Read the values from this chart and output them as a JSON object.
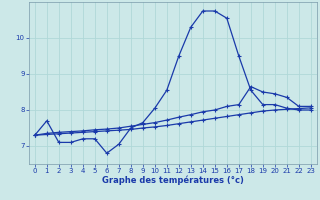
{
  "title": "",
  "xlabel": "Graphe des températures (°c)",
  "ylabel": "",
  "background_color": "#cce8e8",
  "grid_color": "#b0d8d8",
  "line_color": "#1a3aaa",
  "xlim": [
    -0.5,
    23.5
  ],
  "ylim": [
    6.5,
    11.0
  ],
  "yticks": [
    7,
    8,
    9,
    10
  ],
  "xticks": [
    0,
    1,
    2,
    3,
    4,
    5,
    6,
    7,
    8,
    9,
    10,
    11,
    12,
    13,
    14,
    15,
    16,
    17,
    18,
    19,
    20,
    21,
    22,
    23
  ],
  "series": [
    {
      "x": [
        0,
        1,
        2,
        3,
        4,
        5,
        6,
        7,
        8,
        9,
        10,
        11,
        12,
        13,
        14,
        15,
        16,
        17,
        18,
        19,
        20,
        21,
        22,
        23
      ],
      "y": [
        7.3,
        7.7,
        7.1,
        7.1,
        7.2,
        7.2,
        6.8,
        7.05,
        7.5,
        7.65,
        8.05,
        8.55,
        9.5,
        10.3,
        10.75,
        10.75,
        10.55,
        9.5,
        8.55,
        8.15,
        8.15,
        8.05,
        8.0,
        8.0
      ]
    },
    {
      "x": [
        0,
        1,
        2,
        3,
        4,
        5,
        6,
        7,
        8,
        9,
        10,
        11,
        12,
        13,
        14,
        15,
        16,
        17,
        18,
        19,
        20,
        21,
        22,
        23
      ],
      "y": [
        7.3,
        7.35,
        7.38,
        7.4,
        7.42,
        7.45,
        7.47,
        7.5,
        7.55,
        7.6,
        7.65,
        7.72,
        7.8,
        7.87,
        7.95,
        8.0,
        8.1,
        8.15,
        8.65,
        8.5,
        8.45,
        8.35,
        8.1,
        8.1
      ]
    },
    {
      "x": [
        0,
        1,
        2,
        3,
        4,
        5,
        6,
        7,
        8,
        9,
        10,
        11,
        12,
        13,
        14,
        15,
        16,
        17,
        18,
        19,
        20,
        21,
        22,
        23
      ],
      "y": [
        7.3,
        7.32,
        7.34,
        7.36,
        7.38,
        7.4,
        7.42,
        7.44,
        7.46,
        7.5,
        7.53,
        7.57,
        7.62,
        7.67,
        7.72,
        7.77,
        7.82,
        7.87,
        7.92,
        7.97,
        8.0,
        8.02,
        8.04,
        8.06
      ]
    }
  ],
  "marker": "+",
  "markersize": 3,
  "linewidth": 0.9,
  "tick_fontsize": 5,
  "label_fontsize": 6,
  "tick_color": "#1a3aaa",
  "label_color": "#1a3aaa",
  "spine_color": "#7a9aaa"
}
